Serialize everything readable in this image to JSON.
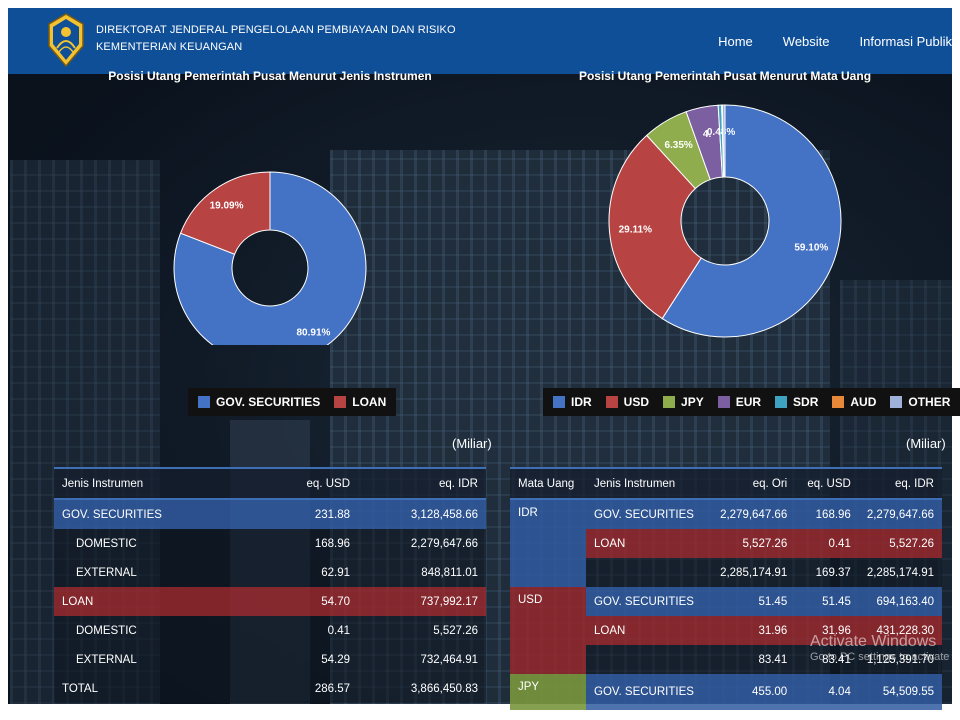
{
  "header": {
    "org_line1": "DIREKTORAT JENDERAL PENGELOLAAN PEMBIAYAAN DAN RISIKO",
    "org_line2": "KEMENTERIAN KEUANGAN",
    "nav": [
      "Home",
      "Website",
      "Informasi Publik"
    ]
  },
  "colors": {
    "header_bg": "#0f4f97",
    "gov_securities": "#4472c4",
    "loan": "#b84343",
    "idr": "#4472c4",
    "usd": "#b84343",
    "jpy": "#8fad4c",
    "eur": "#7b5fa1",
    "sdr": "#3ea3c0",
    "aud": "#e8893a",
    "other": "#9fb1d8"
  },
  "chart_data": [
    {
      "type": "pie",
      "title": "Posisi Utang Pemerintah Pusat Menurut Jenis Instrumen",
      "categories": [
        "GOV. SECURITIES",
        "LOAN"
      ],
      "values": [
        80.91,
        19.09
      ],
      "labels": [
        "80.91%",
        "19.09%"
      ],
      "legend": "bottom"
    },
    {
      "type": "pie",
      "title": "Posisi Utang Pemerintah Pusat Menurut Mata Uang",
      "categories": [
        "IDR",
        "USD",
        "JPY",
        "EUR",
        "SDR",
        "AUD",
        "OTHER"
      ],
      "values": [
        59.1,
        29.11,
        6.35,
        4.5,
        0.48,
        0.1,
        0.36
      ],
      "labels": [
        "59.10%",
        "29.11%",
        "6.35%",
        "4.",
        "0.48%",
        "",
        ""
      ],
      "legend": "bottom"
    }
  ],
  "miliar": "(Miliar)",
  "table_instrumen": {
    "headers": [
      "Jenis Instrumen",
      "eq. USD",
      "eq. IDR"
    ],
    "rows": [
      {
        "name": "GOV. SECURITIES",
        "usd": "231.88",
        "idr": "3,128,458.66",
        "style": "blue",
        "indent": false
      },
      {
        "name": "DOMESTIC",
        "usd": "168.96",
        "idr": "2,279,647.66",
        "style": "dark",
        "indent": true
      },
      {
        "name": "EXTERNAL",
        "usd": "62.91",
        "idr": "848,811.01",
        "style": "dark",
        "indent": true
      },
      {
        "name": "LOAN",
        "usd": "54.70",
        "idr": "737,992.17",
        "style": "red",
        "indent": false
      },
      {
        "name": "DOMESTIC",
        "usd": "0.41",
        "idr": "5,527.26",
        "style": "dark",
        "indent": true
      },
      {
        "name": "EXTERNAL",
        "usd": "54.29",
        "idr": "732,464.91",
        "style": "dark",
        "indent": true
      },
      {
        "name": "TOTAL",
        "usd": "286.57",
        "idr": "3,866,450.83",
        "style": "dark",
        "indent": false
      }
    ]
  },
  "table_mata_uang": {
    "headers": [
      "Mata Uang",
      "Jenis Instrumen",
      "eq. Ori",
      "eq. USD",
      "eq. IDR"
    ],
    "rows": [
      {
        "currency": "IDR",
        "instrument": "GOV. SECURITIES",
        "ori": "2,279,647.66",
        "usd": "168.96",
        "idr": "2,279,647.66",
        "style": "blue"
      },
      {
        "currency": "",
        "instrument": "LOAN",
        "ori": "5,527.26",
        "usd": "0.41",
        "idr": "5,527.26",
        "style": "red"
      },
      {
        "currency": "",
        "instrument": "",
        "ori": "2,285,174.91",
        "usd": "169.37",
        "idr": "2,285,174.91",
        "style": "dark"
      },
      {
        "currency": "USD",
        "instrument": "GOV. SECURITIES",
        "ori": "51.45",
        "usd": "51.45",
        "idr": "694,163.40",
        "style": "blue"
      },
      {
        "currency": "",
        "instrument": "LOAN",
        "ori": "31.96",
        "usd": "31.96",
        "idr": "431,228.30",
        "style": "red"
      },
      {
        "currency": "",
        "instrument": "",
        "ori": "83.41",
        "usd": "83.41",
        "idr": "1,125,391.70",
        "style": "dark"
      },
      {
        "currency": "JPY",
        "instrument": "GOV. SECURITIES",
        "ori": "455.00",
        "usd": "4.04",
        "idr": "54,509.55",
        "style": "blue"
      }
    ],
    "currency_groups": [
      {
        "label": "IDR",
        "span": 3,
        "style": "blue"
      },
      {
        "label": "USD",
        "span": 3,
        "style": "red"
      },
      {
        "label": "JPY",
        "span": 1,
        "style": "green"
      }
    ]
  },
  "watermark": {
    "line1": "Activate Windows",
    "line2": "Go to PC settings to activate"
  }
}
